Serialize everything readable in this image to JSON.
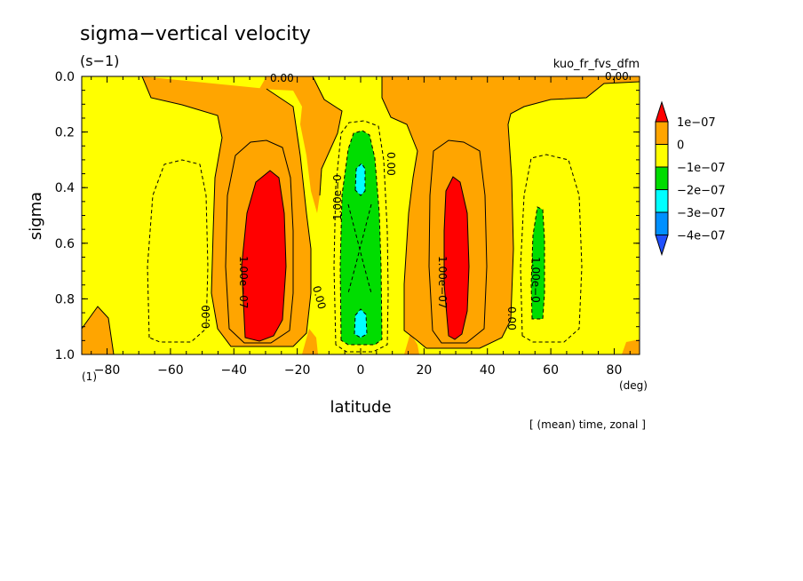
{
  "chart_data": {
    "type": "contour",
    "title": "sigma−vertical velocity",
    "units": "(s−1)",
    "dataset_label": "kuo_fr_fvs_dfm",
    "xlabel": "latitude",
    "x_unit": "(deg)",
    "ylabel": "sigma",
    "y_unit": "(1)",
    "footnote": "[ (mean) time, zonal ]",
    "xlim": [
      -88,
      88
    ],
    "ylim": [
      0.0,
      1.0
    ],
    "y_inverted": true,
    "x_ticks": [
      "−80",
      "−60",
      "−40",
      "−20",
      "0",
      "20",
      "40",
      "60",
      "80"
    ],
    "x_tick_values": [
      -80,
      -60,
      -40,
      -20,
      0,
      20,
      40,
      60,
      80
    ],
    "y_ticks": [
      "0.0",
      "0.2",
      "0.4",
      "0.6",
      "0.8",
      "1.0"
    ],
    "y_tick_values": [
      0.0,
      0.2,
      0.4,
      0.6,
      0.8,
      1.0
    ],
    "colorbar": {
      "labels": [
        "1e−07",
        "0",
        "−1e−07",
        "−2e−07",
        "−3e−07",
        "−4e−07"
      ],
      "colors": [
        "#ff0000",
        "#ffa500",
        "#ffff00",
        "#00dd00",
        "#00ffff",
        "#0090ff",
        "#2050ff"
      ]
    },
    "contour_labels": [
      "0.00",
      "0.00",
      "0.00",
      "0.00",
      "0.00",
      "0.00",
      "1.00e−07",
      "1.00e−07",
      "1.00e−0",
      "1.00e−0"
    ],
    "regions": [
      {
        "level": "> 1e-07",
        "color": "#ff0000",
        "lat_range": [
          -38,
          -22
        ],
        "sigma_range": [
          0.33,
          0.94
        ]
      },
      {
        "level": "> 1e-07",
        "color": "#ff0000",
        "lat_range": [
          26,
          34
        ],
        "sigma_range": [
          0.35,
          0.94
        ]
      },
      {
        "level": "-2e-07 to -1e-07",
        "color": "#00dd00",
        "lat_range": [
          -7,
          7
        ],
        "sigma_range": [
          0.19,
          0.96
        ]
      },
      {
        "level": "-3e-07 to -2e-07",
        "color": "#00ffff",
        "lat_range": [
          -2,
          2
        ],
        "sigma_range": [
          0.32,
          0.43
        ]
      },
      {
        "level": "-3e-07 to -2e-07",
        "color": "#00ffff",
        "lat_range": [
          -2,
          2
        ],
        "sigma_range": [
          0.83,
          0.94
        ]
      },
      {
        "level": "-2e-07 to -1e-07",
        "color": "#00dd00",
        "lat_range": [
          53,
          58
        ],
        "sigma_range": [
          0.47,
          0.88
        ]
      }
    ]
  }
}
